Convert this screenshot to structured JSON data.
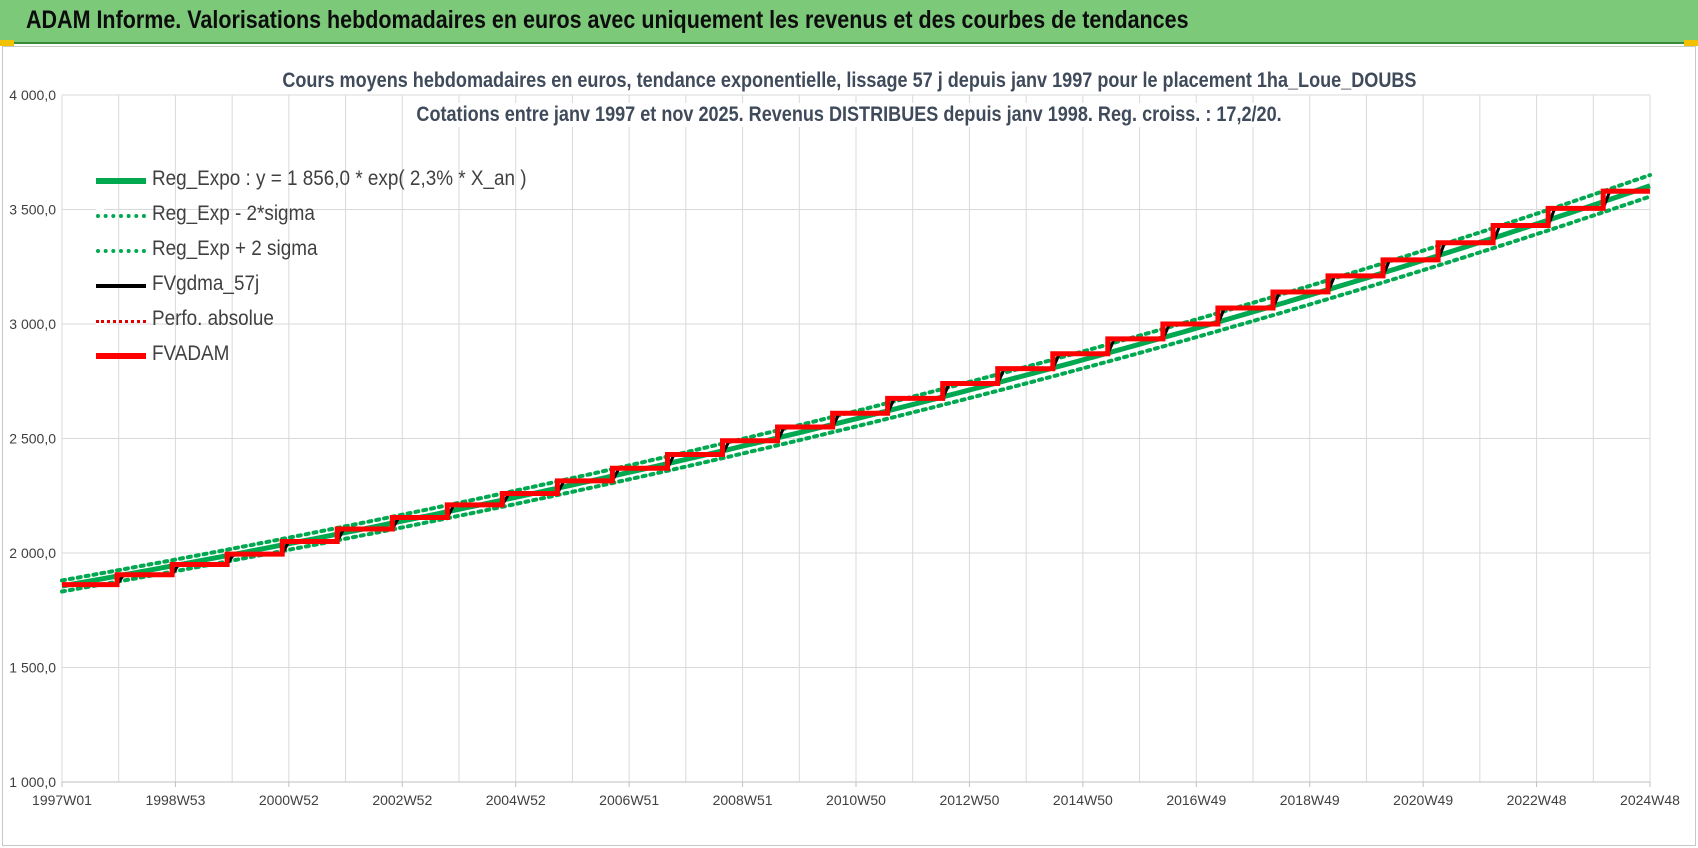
{
  "header": {
    "title": "ADAM Informe. Valorisations hebdomadaires en euros avec uniquement les revenus et des courbes de tendances"
  },
  "chart_data": {
    "type": "line",
    "title": "Cours moyens hebdomadaires en euros, tendance exponentielle, lissage 57 j depuis janv 1997 pour le placement 1ha_Loue_DOUBS",
    "subtitle": "Cotations entre janv 1997 et nov 2025. Revenus DISTRIBUES depuis janv 1998. Reg. croiss. : 17,2/20.",
    "xlabel": "",
    "ylabel": "",
    "x_start_year": 1997.0,
    "x_end_year": 2025.85,
    "x_ticks": [
      "1997W01",
      "1998W53",
      "2000W52",
      "2002W52",
      "2004W52",
      "2006W51",
      "2008W51",
      "2010W50",
      "2012W50",
      "2014W50",
      "2016W49",
      "2018W49",
      "2020W49",
      "2022W48",
      "2024W48"
    ],
    "y_ticks": [
      "1 000,0",
      "1 500,0",
      "2 000,0",
      "2 500,0",
      "3 000,0",
      "3 500,0",
      "4 000,0"
    ],
    "ylim": [
      1000,
      4000
    ],
    "grid": true,
    "legend_position": "top-left",
    "trend": {
      "a": 1856.0,
      "rate": 0.023,
      "sigma_band": 0.013
    },
    "step_years": [
      1997,
      1998,
      1999,
      2000,
      2001,
      2002,
      2003,
      2004,
      2005,
      2006,
      2007,
      2008,
      2009,
      2010,
      2011,
      2012,
      2013,
      2014,
      2015,
      2016,
      2017,
      2018,
      2019,
      2020,
      2021,
      2022,
      2023,
      2024,
      2025
    ],
    "step_values": [
      1862,
      1905,
      1950,
      1995,
      2050,
      2105,
      2155,
      2210,
      2260,
      2315,
      2370,
      2430,
      2490,
      2550,
      2610,
      2675,
      2740,
      2805,
      2870,
      2935,
      3000,
      3070,
      3140,
      3210,
      3280,
      3355,
      3430,
      3505,
      3580
    ],
    "series": [
      {
        "name": "Reg_Expo : y = 1 856,0 * exp( 2,3% *  X_an )",
        "color": "#00a850",
        "style": "solid"
      },
      {
        "name": "Reg_Exp - 2*sigma",
        "color": "#00a850",
        "style": "dotted"
      },
      {
        "name": "Reg_Exp + 2 sigma",
        "color": "#00a850",
        "style": "dotted"
      },
      {
        "name": "FVgdma_57j",
        "color": "#000000",
        "style": "solid"
      },
      {
        "name": "Perfo. absolue",
        "color": "#e00000",
        "style": "dotted"
      },
      {
        "name": "FVADAM",
        "color": "#ff0000",
        "style": "solid"
      }
    ]
  }
}
